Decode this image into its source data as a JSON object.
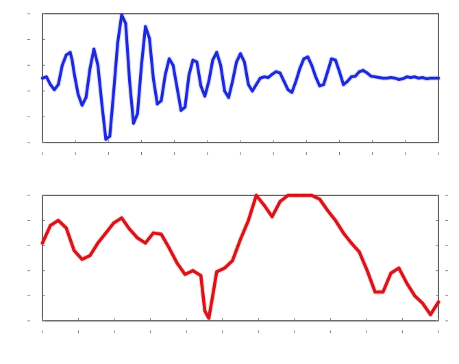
{
  "chart_data": [
    {
      "type": "line",
      "title": "",
      "xlabel": "",
      "ylabel": "",
      "xlim": [
        0,
        1
      ],
      "ylim": [
        -1,
        1
      ],
      "grid": false,
      "legend": "none",
      "series": [
        {
          "color": "#1f2bd6",
          "x": [
            0,
            0.01,
            0.02,
            0.03,
            0.04,
            0.05,
            0.06,
            0.07,
            0.075,
            0.08,
            0.09,
            0.1,
            0.11,
            0.12,
            0.13,
            0.14,
            0.15,
            0.16,
            0.17,
            0.18,
            0.19,
            0.2,
            0.21,
            0.22,
            0.23,
            0.24,
            0.25,
            0.26,
            0.27,
            0.28,
            0.29,
            0.3,
            0.31,
            0.32,
            0.33,
            0.34,
            0.35,
            0.36,
            0.37,
            0.38,
            0.39,
            0.4,
            0.41,
            0.42,
            0.43,
            0.44,
            0.45,
            0.46,
            0.47,
            0.48,
            0.49,
            0.5,
            0.51,
            0.52,
            0.53,
            0.54,
            0.55,
            0.56,
            0.57,
            0.58,
            0.59,
            0.6,
            0.61,
            0.62,
            0.63,
            0.64,
            0.65,
            0.66,
            0.67,
            0.68,
            0.69,
            0.7,
            0.71,
            0.72,
            0.73,
            0.74,
            0.75,
            0.76,
            0.77,
            0.78,
            0.79,
            0.8,
            0.81,
            0.82,
            0.83,
            0.84,
            0.85,
            0.86,
            0.87,
            0.88,
            0.89,
            0.9,
            0.91,
            0.92,
            0.93,
            0.94,
            0.95,
            0.96,
            0.97,
            0.98,
            0.99,
            1.0
          ],
          "values": [
            0.0,
            0.02,
            -0.1,
            -0.18,
            -0.1,
            0.2,
            0.36,
            0.4,
            0.28,
            0.08,
            -0.25,
            -0.42,
            -0.3,
            0.15,
            0.45,
            0.2,
            -0.4,
            -0.95,
            -0.9,
            -0.2,
            0.55,
            0.98,
            0.85,
            -0.05,
            -0.7,
            -0.55,
            0.2,
            0.8,
            0.62,
            0.0,
            -0.4,
            -0.35,
            0.05,
            0.3,
            0.2,
            -0.15,
            -0.5,
            -0.45,
            0.05,
            0.28,
            0.25,
            -0.12,
            -0.28,
            -0.05,
            0.28,
            0.4,
            0.2,
            -0.2,
            -0.3,
            -0.05,
            0.25,
            0.38,
            0.25,
            -0.1,
            -0.2,
            -0.1,
            0.0,
            0.02,
            0.01,
            0.06,
            0.1,
            0.08,
            -0.05,
            -0.18,
            -0.22,
            -0.05,
            0.15,
            0.3,
            0.33,
            0.2,
            0.02,
            -0.12,
            -0.1,
            0.1,
            0.3,
            0.28,
            0.1,
            -0.1,
            -0.05,
            0.02,
            0.03,
            0.1,
            0.12,
            0.08,
            0.03,
            0.02,
            0.01,
            0.0,
            0.0,
            0.01,
            0.0,
            -0.02,
            -0.01,
            0.02,
            0.01,
            0.02,
            0.0,
            0.01,
            -0.01,
            0.0,
            0.0,
            0.0
          ]
        }
      ]
    },
    {
      "type": "line",
      "title": "",
      "xlabel": "",
      "ylabel": "",
      "xlim": [
        0,
        1
      ],
      "ylim": [
        0,
        1
      ],
      "grid": false,
      "legend": "none",
      "series": [
        {
          "color": "#d6161c",
          "x": [
            0,
            0.02,
            0.04,
            0.06,
            0.08,
            0.1,
            0.12,
            0.14,
            0.16,
            0.18,
            0.2,
            0.22,
            0.24,
            0.26,
            0.28,
            0.3,
            0.32,
            0.34,
            0.36,
            0.38,
            0.4,
            0.41,
            0.42,
            0.43,
            0.44,
            0.46,
            0.48,
            0.5,
            0.52,
            0.54,
            0.56,
            0.58,
            0.6,
            0.62,
            0.64,
            0.66,
            0.68,
            0.7,
            0.72,
            0.74,
            0.76,
            0.78,
            0.8,
            0.82,
            0.84,
            0.86,
            0.88,
            0.9,
            0.92,
            0.94,
            0.96,
            0.98,
            1.0
          ],
          "values": [
            0.62,
            0.76,
            0.8,
            0.74,
            0.56,
            0.49,
            0.52,
            0.62,
            0.7,
            0.78,
            0.82,
            0.73,
            0.66,
            0.62,
            0.7,
            0.69,
            0.58,
            0.46,
            0.37,
            0.4,
            0.36,
            0.08,
            0.02,
            0.2,
            0.39,
            0.42,
            0.48,
            0.65,
            0.8,
            1.0,
            0.92,
            0.83,
            0.95,
            1.0,
            1.0,
            1.0,
            1.0,
            0.97,
            0.88,
            0.8,
            0.7,
            0.62,
            0.55,
            0.4,
            0.23,
            0.23,
            0.38,
            0.42,
            0.3,
            0.2,
            0.14,
            0.05,
            0.15
          ]
        }
      ]
    }
  ]
}
